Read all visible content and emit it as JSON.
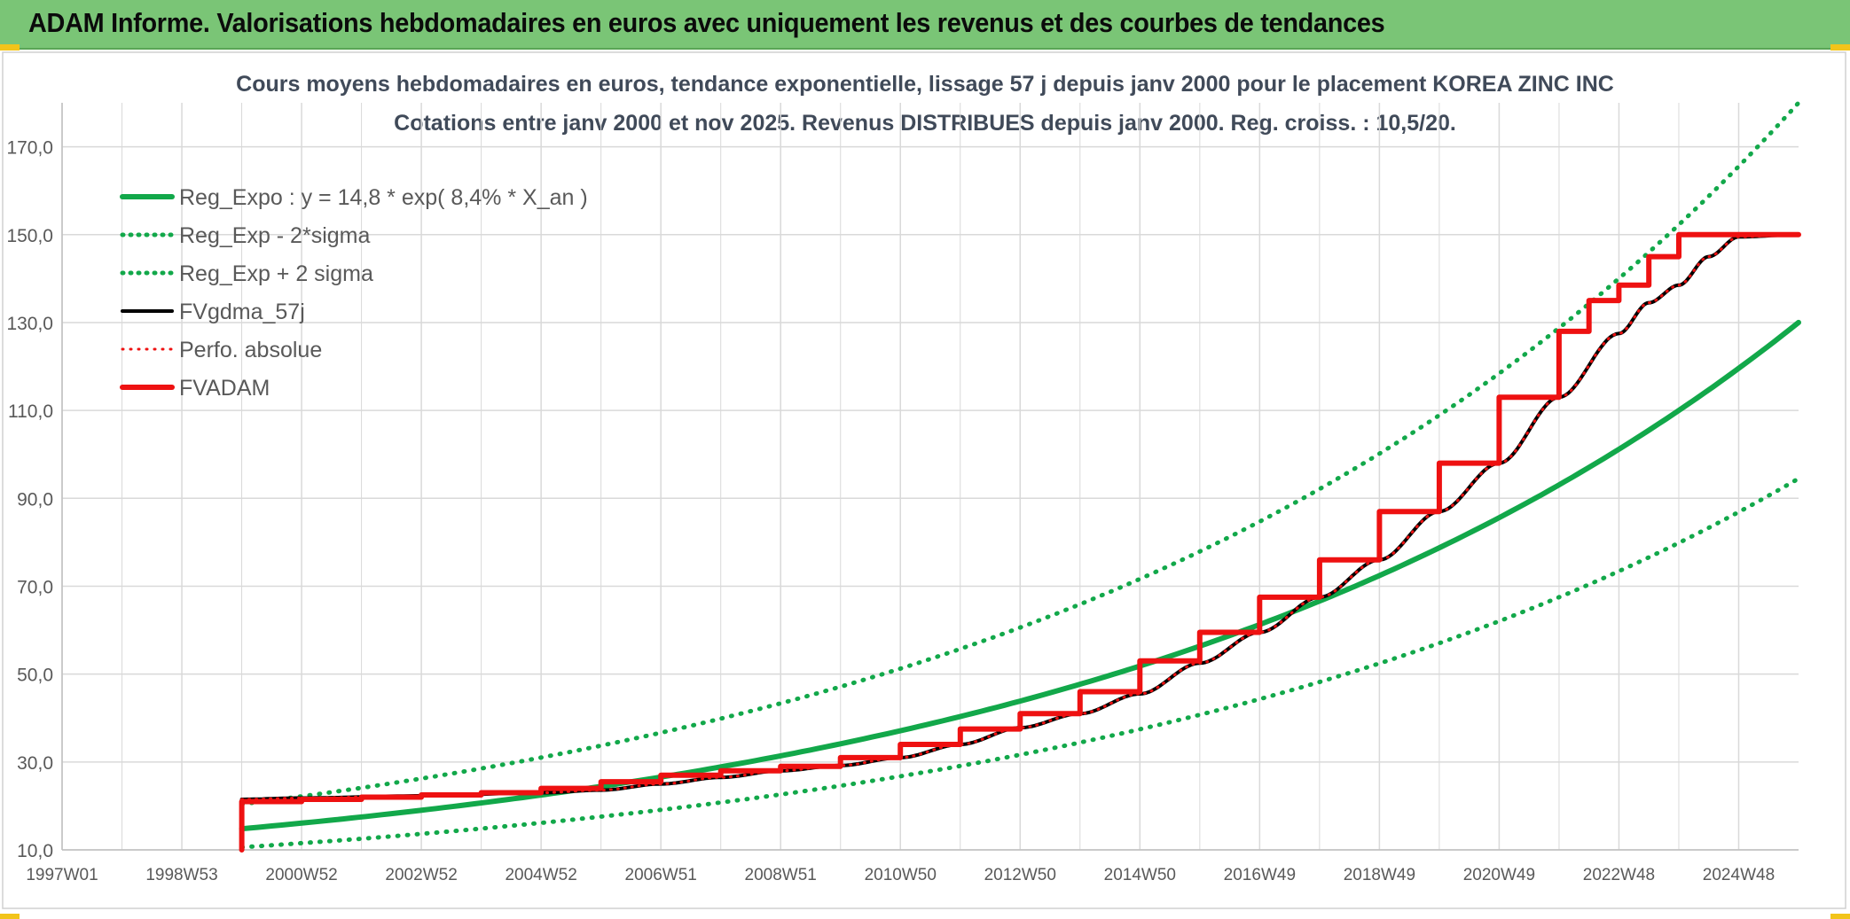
{
  "banner": {
    "title": "ADAM Informe. Valorisations hebdomadaires en euros avec uniquement les revenus et des courbes de tendances",
    "color": "#7ac576"
  },
  "colors": {
    "green": "#12a84a",
    "black": "#000000",
    "red": "#ee1111",
    "grid": "#d9d9d9",
    "axis_text": "#595959",
    "title_text": "#404a59",
    "accent_yellow": "#f2c41a"
  },
  "chart_data": {
    "type": "line",
    "title": "Cours moyens hebdomadaires en euros, tendance exponentielle, lissage 57 j depuis janv 2000 pour le placement KOREA ZINC INC",
    "subtitle": "Cotations entre janv 2000 et nov 2025. Revenus DISTRIBUES depuis janv 2000. Reg. croiss. : 10,5/20.",
    "xlabel": "",
    "ylabel": "",
    "x_tick_labels": [
      "1997W01",
      "1998W53",
      "2000W52",
      "2002W52",
      "2004W52",
      "2006W51",
      "2008W51",
      "2010W50",
      "2012W50",
      "2014W50",
      "2016W49",
      "2018W49",
      "2020W49",
      "2022W48",
      "2024W48"
    ],
    "x_tick_years": [
      1997.0,
      1999.0,
      2001.0,
      2003.0,
      2005.0,
      2007.0,
      2009.0,
      2011.0,
      2013.0,
      2015.0,
      2017.0,
      2019.0,
      2021.0,
      2023.0,
      2025.0
    ],
    "xlim": [
      1997.0,
      2026.0
    ],
    "ylim": [
      10,
      180
    ],
    "y_ticks": [
      10,
      30,
      50,
      70,
      90,
      110,
      130,
      150,
      170
    ],
    "y_tick_labels": [
      "10,0",
      "30,0",
      "50,0",
      "70,0",
      "90,0",
      "110,0",
      "130,0",
      "150,0",
      "170,0"
    ],
    "grid": true,
    "legend_position": "top-left",
    "legend": [
      {
        "label": "Reg_Expo : y = 14,8 * exp( 8,4% *  X_an )",
        "color": "#12a84a",
        "style": "solid",
        "width": 6
      },
      {
        "label": "Reg_Exp - 2*sigma",
        "color": "#12a84a",
        "style": "dotted",
        "width": 5
      },
      {
        "label": "Reg_Exp + 2 sigma",
        "color": "#12a84a",
        "style": "dotted",
        "width": 5
      },
      {
        "label": "FVgdma_57j",
        "color": "#000000",
        "style": "solid",
        "width": 4
      },
      {
        "label": "Perfo. absolue",
        "color": "#ee1111",
        "style": "dotted",
        "width": 3
      },
      {
        "label": "FVADAM",
        "color": "#ee1111",
        "style": "solid",
        "width": 6
      }
    ],
    "series": [
      {
        "name": "Reg_Expo : y = 14,8 * exp( 8,4% *  X_an )",
        "color": "#12a84a",
        "style": "solid",
        "x": [
          2000.0,
          2002.0,
          2004.0,
          2006.0,
          2008.0,
          2010.0,
          2012.0,
          2014.0,
          2016.0,
          2018.0,
          2020.0,
          2022.0,
          2024.0,
          2026.0
        ],
        "y": [
          14.8,
          17.4,
          20.6,
          24.3,
          28.6,
          33.7,
          39.9,
          47.2,
          55.7,
          65.8,
          77.6,
          91.6,
          108.5,
          130.0
        ]
      },
      {
        "name": "Reg_Exp - 2*sigma",
        "color": "#12a84a",
        "style": "dotted",
        "x": [
          2000.0,
          2002.0,
          2004.0,
          2006.0,
          2008.0,
          2010.0,
          2012.0,
          2014.0,
          2016.0,
          2018.0,
          2020.0,
          2022.0,
          2024.0,
          2026.0
        ],
        "y": [
          10.6,
          12.5,
          14.8,
          17.5,
          20.6,
          24.3,
          28.7,
          34.0,
          40.1,
          47.4,
          55.9,
          66.0,
          78.1,
          94.5
        ]
      },
      {
        "name": "Reg_Exp + 2 sigma",
        "color": "#12a84a",
        "style": "dotted",
        "x": [
          2000.0,
          2002.0,
          2004.0,
          2006.0,
          2008.0,
          2010.0,
          2012.0,
          2014.0,
          2016.0,
          2018.0,
          2020.0,
          2022.0,
          2024.0,
          2026.0
        ],
        "y": [
          20.4,
          24.1,
          28.4,
          33.6,
          39.7,
          46.9,
          55.4,
          65.5,
          77.3,
          91.3,
          107.8,
          127.3,
          150.3,
          180.0
        ]
      },
      {
        "name": "FVgdma_57j",
        "color": "#000000",
        "style": "solid",
        "x": [
          2000.0,
          2001.0,
          2003.0,
          2005.0,
          2006.0,
          2007.0,
          2008.0,
          2009.0,
          2010.0,
          2011.0,
          2012.0,
          2013.0,
          2014.0,
          2015.0,
          2016.0,
          2017.0,
          2018.0,
          2019.0,
          2020.0,
          2021.0,
          2022.0,
          2023.0,
          2023.5,
          2024.0,
          2024.5,
          2025.0,
          2026.0
        ],
        "y": [
          21.5,
          21.8,
          22.3,
          23.0,
          23.6,
          25.0,
          26.5,
          28.0,
          29.2,
          31.0,
          34.0,
          37.8,
          41.0,
          45.5,
          52.5,
          59.5,
          67.5,
          76.0,
          87.0,
          98.0,
          113.0,
          127.5,
          134.5,
          138.5,
          145.0,
          149.5,
          150.0
        ]
      },
      {
        "name": "Perfo. absolue",
        "color": "#ee1111",
        "style": "dotted",
        "x": [
          2000.0,
          2001.0,
          2003.0,
          2005.0,
          2006.0,
          2007.0,
          2008.0,
          2009.0,
          2010.0,
          2011.0,
          2012.0,
          2013.0,
          2014.0,
          2015.0,
          2016.0,
          2017.0,
          2018.0,
          2019.0,
          2020.0,
          2021.0,
          2022.0,
          2023.0,
          2023.5,
          2024.0,
          2024.5,
          2025.0,
          2026.0
        ],
        "y": [
          21.5,
          21.8,
          22.3,
          23.0,
          23.6,
          25.0,
          26.5,
          28.0,
          29.2,
          31.0,
          34.0,
          37.8,
          41.0,
          45.5,
          52.5,
          59.5,
          67.5,
          76.0,
          87.0,
          98.0,
          113.0,
          127.5,
          134.5,
          138.5,
          145.0,
          149.5,
          150.0
        ]
      },
      {
        "name": "FVADAM",
        "color": "#ee1111",
        "style": "solid",
        "x": [
          2000.0,
          2000.0,
          2001.0,
          2001.0,
          2002.0,
          2002.0,
          2003.0,
          2003.0,
          2004.0,
          2004.0,
          2005.0,
          2005.0,
          2006.0,
          2006.0,
          2007.0,
          2007.0,
          2008.0,
          2008.0,
          2009.0,
          2009.0,
          2010.0,
          2010.0,
          2011.0,
          2011.0,
          2012.0,
          2012.0,
          2013.0,
          2013.0,
          2014.0,
          2014.0,
          2015.0,
          2015.0,
          2016.0,
          2016.0,
          2017.0,
          2017.0,
          2018.0,
          2018.0,
          2019.0,
          2019.0,
          2020.0,
          2020.0,
          2021.0,
          2021.0,
          2022.0,
          2022.0,
          2022.5,
          2022.5,
          2023.0,
          2023.0,
          2023.5,
          2023.5,
          2024.0,
          2024.0,
          2024.5,
          2024.5,
          2026.0
        ],
        "y": [
          10.0,
          21.0,
          21.0,
          21.5,
          21.5,
          22.0,
          22.0,
          22.5,
          22.5,
          23.0,
          23.0,
          24.0,
          24.0,
          25.5,
          25.5,
          27.0,
          27.0,
          28.0,
          28.0,
          29.0,
          29.0,
          31.0,
          31.0,
          34.0,
          34.0,
          37.5,
          37.5,
          41.0,
          41.0,
          46.0,
          46.0,
          53.0,
          53.0,
          59.5,
          59.5,
          67.5,
          67.5,
          76.0,
          76.0,
          87.0,
          87.0,
          98.0,
          98.0,
          113.0,
          113.0,
          128.0,
          128.0,
          135.0,
          135.0,
          138.5,
          138.5,
          145.0,
          145.0,
          150.0,
          150.0,
          150.0,
          150.0
        ]
      }
    ]
  }
}
